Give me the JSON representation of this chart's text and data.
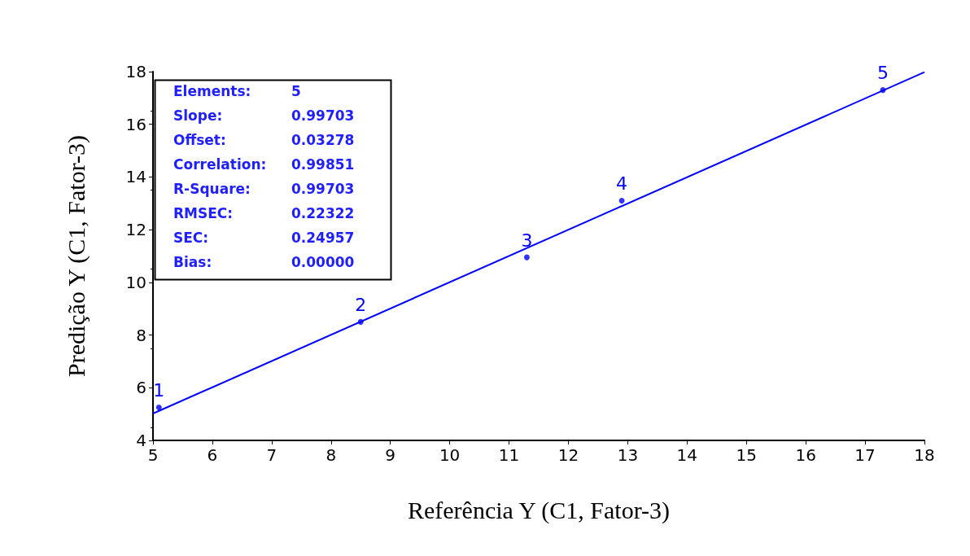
{
  "chart_data": {
    "type": "scatter",
    "xlabel": "Referência Y (C1, Fator-3)",
    "ylabel": "Predição Y (C1, Fator-3)",
    "xlim": [
      5,
      18
    ],
    "xticks": [
      5,
      6,
      7,
      8,
      9,
      10,
      11,
      12,
      13,
      14,
      15,
      16,
      17,
      18
    ],
    "ylim": [
      4,
      18
    ],
    "yticks": [
      4,
      6,
      8,
      10,
      12,
      14,
      16,
      18
    ],
    "grid": false,
    "series": [
      {
        "type": "scatter",
        "color": "#0000ff",
        "marker": "circle",
        "x": [
          5.1,
          8.5,
          11.3,
          12.9,
          17.3
        ],
        "values": [
          5.25,
          8.5,
          10.95,
          13.1,
          17.3
        ]
      },
      {
        "type": "line",
        "color": "#0000ff",
        "marker": "none",
        "x": [
          5,
          18
        ],
        "values": [
          5.02,
          17.98
        ],
        "line_style": "solid"
      }
    ],
    "annotations": [
      "Elements:",
      "5",
      "Slope:",
      "0.99703",
      "Offset:",
      "0.03278",
      "Correlation:",
      "0.99851",
      "R-Square:",
      "0.99703",
      "RMSEC:",
      "0.22322",
      "SEC:",
      "0.24957",
      "Bias:",
      "0.00000",
      {
        "text": "1",
        "x": 5.1,
        "y": 5.25
      },
      {
        "text": "2",
        "x": 8.5,
        "y": 8.5
      },
      {
        "text": "3",
        "x": 11.3,
        "y": 10.95
      },
      {
        "text": "4",
        "x": 12.9,
        "y": 13.1
      },
      {
        "text": "5",
        "x": 17.3,
        "y": 17.3
      }
    ]
  }
}
